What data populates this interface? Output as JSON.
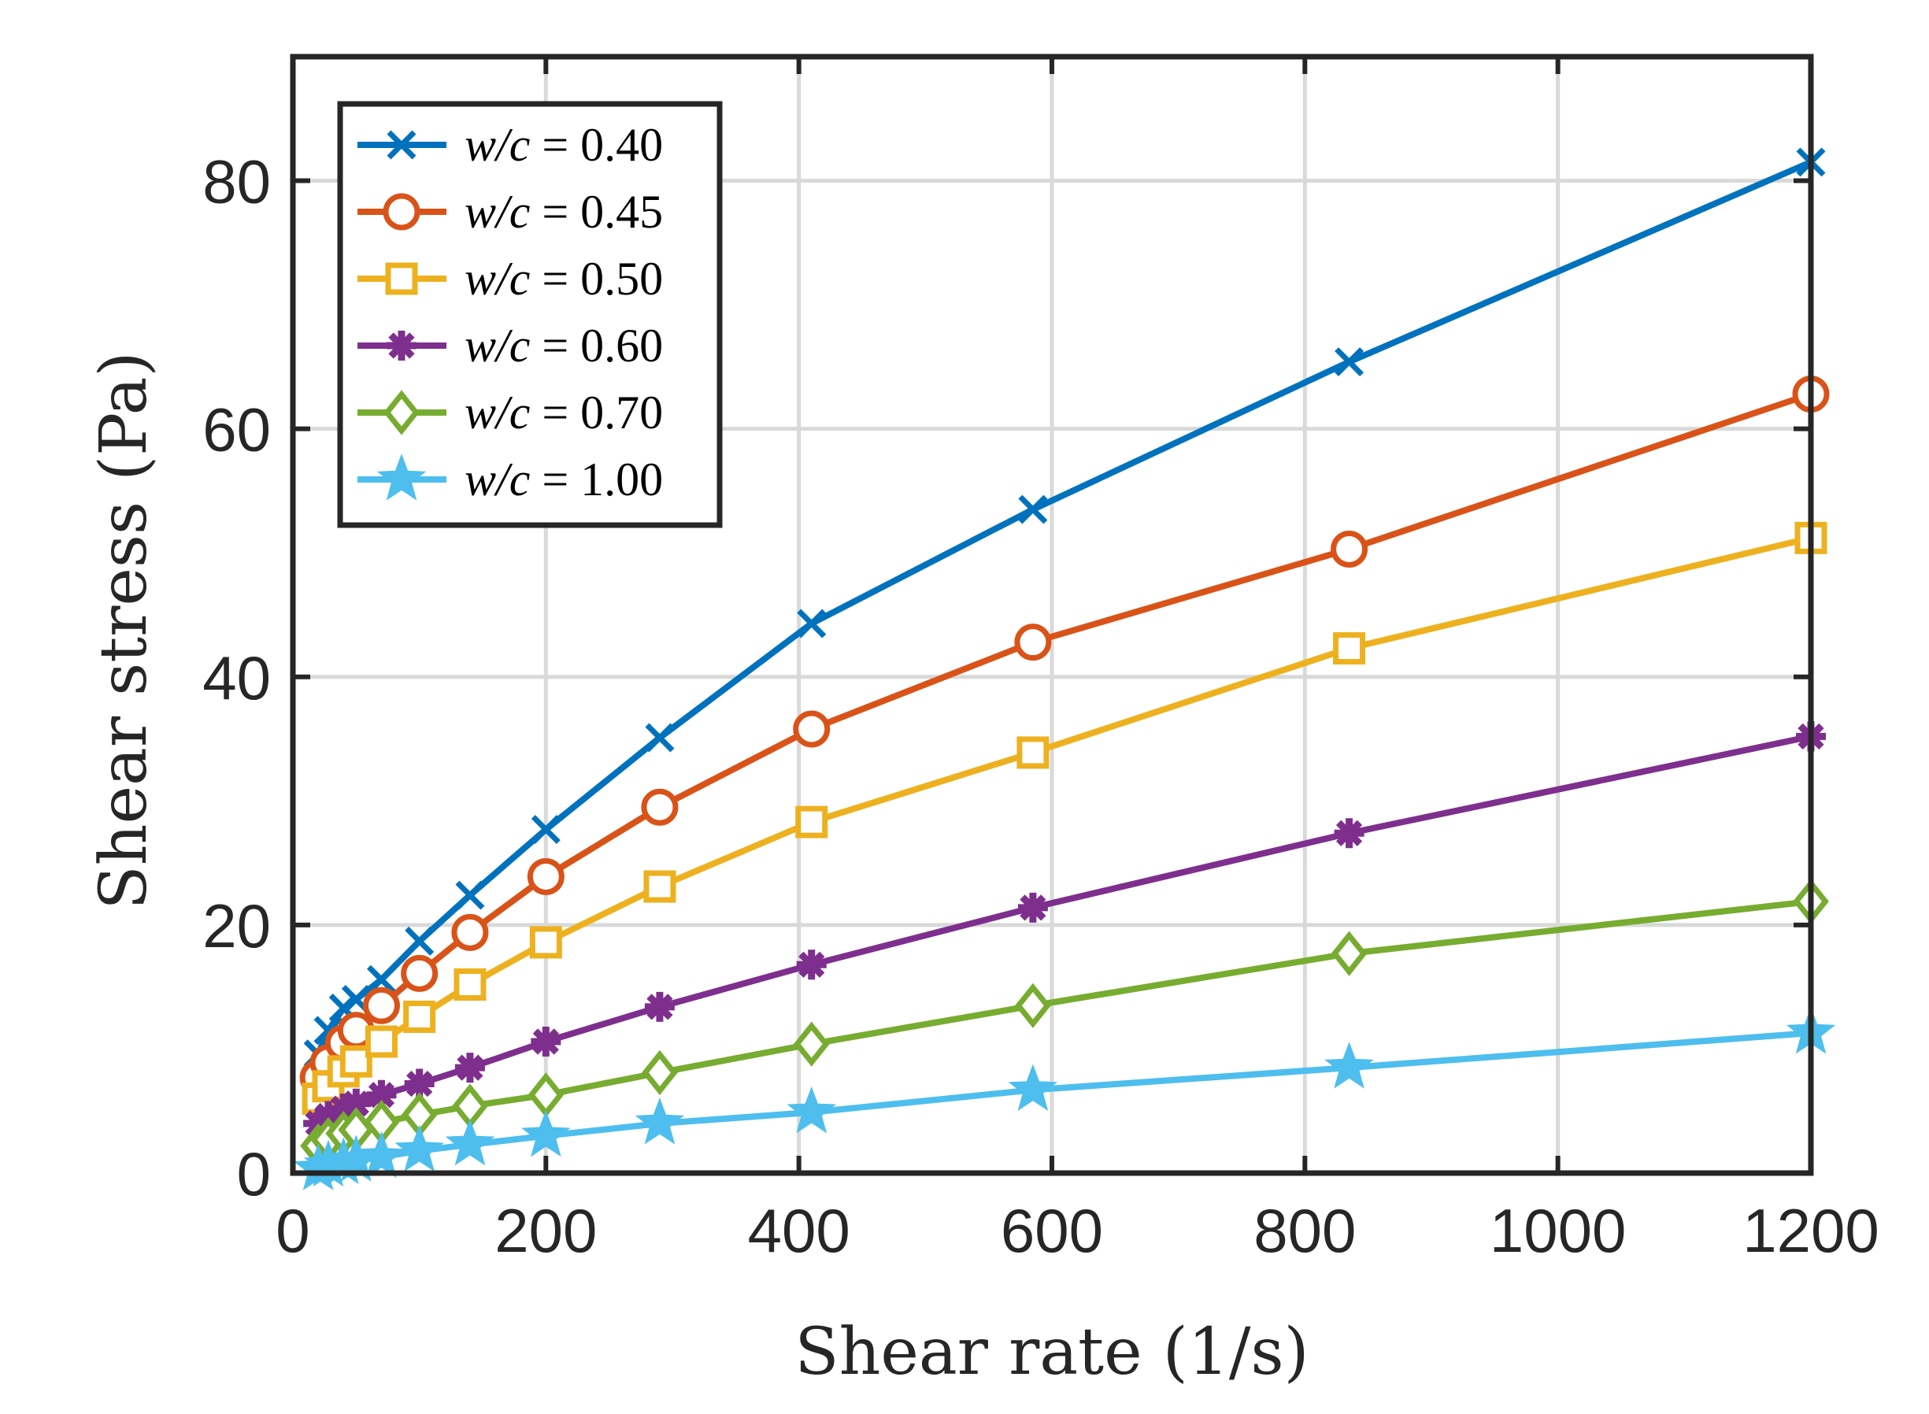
{
  "chart_data": {
    "type": "line",
    "xlabel": "Shear rate (1/s)",
    "ylabel": "Shear stress (Pa)",
    "xlim": [
      0,
      1200
    ],
    "ylim": [
      0,
      90
    ],
    "xticks": [
      0,
      200,
      400,
      600,
      800,
      1000,
      1200
    ],
    "yticks": [
      0,
      20,
      40,
      60,
      80
    ],
    "xtick_labels": [
      "0",
      "200",
      "400",
      "600",
      "800",
      "1000",
      "1200"
    ],
    "ytick_labels": [
      "0",
      "20",
      "40",
      "60",
      "80"
    ],
    "grid": true,
    "legend_position": "top-left",
    "x": [
      20,
      28,
      40,
      50,
      70,
      100,
      140,
      200,
      290,
      410,
      585,
      835,
      1200
    ],
    "series": [
      {
        "name": "w/c = 0.40",
        "italic_part": "w/c",
        "rest": " = 0.40",
        "color": "#0072BD",
        "marker": "x",
        "values": [
          9.6,
          11.5,
          13.3,
          14.0,
          15.6,
          18.7,
          22.4,
          27.7,
          35.1,
          44.3,
          53.5,
          65.4,
          81.5
        ]
      },
      {
        "name": "w/c = 0.45",
        "italic_part": "w/c",
        "rest": " = 0.45",
        "color": "#D95319",
        "marker": "circle",
        "values": [
          7.7,
          8.9,
          10.5,
          11.5,
          13.5,
          16.1,
          19.4,
          23.9,
          29.5,
          35.8,
          42.8,
          50.3,
          62.8
        ]
      },
      {
        "name": "w/c = 0.50",
        "italic_part": "w/c",
        "rest": " = 0.50",
        "color": "#EDB120",
        "marker": "square",
        "values": [
          6.0,
          7.0,
          8.2,
          9.0,
          10.6,
          12.6,
          15.2,
          18.6,
          23.1,
          28.3,
          33.9,
          42.3,
          51.2
        ]
      },
      {
        "name": "w/c = 0.60",
        "italic_part": "w/c",
        "rest": " = 0.60",
        "color": "#7E2F8E",
        "marker": "asterisk",
        "values": [
          4.0,
          4.6,
          5.2,
          5.6,
          6.3,
          7.2,
          8.5,
          10.6,
          13.4,
          16.8,
          21.4,
          27.4,
          35.2
        ]
      },
      {
        "name": "w/c = 0.70",
        "italic_part": "w/c",
        "rest": " = 0.70",
        "color": "#77AC30",
        "marker": "diamond",
        "values": [
          2.2,
          2.7,
          3.2,
          3.5,
          4.1,
          4.7,
          5.4,
          6.3,
          8.1,
          10.4,
          13.5,
          17.7,
          21.9
        ]
      },
      {
        "name": "w/c = 1.00",
        "italic_part": "w/c",
        "rest": " = 1.00",
        "color": "#4DBEEE",
        "marker": "star",
        "values": [
          0.3,
          0.6,
          0.8,
          1.0,
          1.3,
          1.8,
          2.3,
          3.0,
          4.0,
          4.9,
          6.7,
          8.5,
          11.3
        ]
      }
    ]
  }
}
